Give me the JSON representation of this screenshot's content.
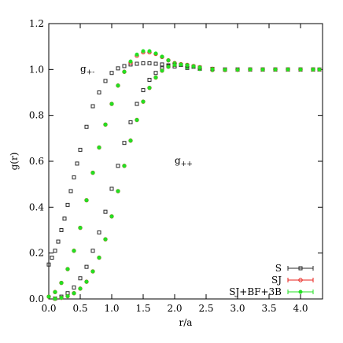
{
  "chart_data": {
    "type": "scatter",
    "xlabel": "r/a",
    "ylabel": "g(r)",
    "xlim": [
      0,
      4.35
    ],
    "ylim": [
      0,
      1.2
    ],
    "x_ticks": [
      0,
      0.5,
      1,
      1.5,
      2,
      2.5,
      3,
      3.5,
      4
    ],
    "x_tick_labels": [
      "0.0",
      "0.5",
      "1.0",
      "1.5",
      "2.0",
      "2.5",
      "3.0",
      "3.5",
      "4.0"
    ],
    "y_ticks": [
      0,
      0.2,
      0.4,
      0.6,
      0.8,
      1.0,
      1.2
    ],
    "y_tick_labels": [
      "0.0",
      "0.2",
      "0.4",
      "0.6",
      "0.8",
      "1.0",
      "1.2"
    ],
    "grid": false,
    "legend_position": "bottom-right",
    "annotations": [
      {
        "base": "g",
        "sub": "+-",
        "x": 0.5,
        "y": 0.99
      },
      {
        "base": "g",
        "sub": "++",
        "x": 2.0,
        "y": 0.59
      }
    ],
    "series": [
      {
        "name": "S",
        "group": "g+-",
        "marker": "square",
        "color": "#2a2a2a",
        "x": [
          0,
          0.05,
          0.1,
          0.15,
          0.2,
          0.25,
          0.3,
          0.35,
          0.4,
          0.45,
          0.5,
          0.6,
          0.7,
          0.8,
          0.9,
          1.0,
          1.1,
          1.2,
          1.3,
          1.4,
          1.5,
          1.6,
          1.7,
          1.8,
          1.9,
          2.0,
          2.2,
          2.4,
          2.6,
          2.8,
          3.0,
          3.2,
          3.4,
          3.6,
          3.8,
          4.0,
          4.2,
          4.3
        ],
        "y": [
          0.15,
          0.18,
          0.21,
          0.25,
          0.3,
          0.35,
          0.41,
          0.47,
          0.53,
          0.59,
          0.65,
          0.75,
          0.84,
          0.9,
          0.95,
          0.985,
          1.005,
          1.015,
          1.022,
          1.025,
          1.027,
          1.027,
          1.025,
          1.022,
          1.018,
          1.013,
          1.007,
          1.003,
          1.001,
          1.0,
          1.0,
          1.0,
          1.0,
          1.0,
          1.0,
          1.0,
          1.0,
          1.0
        ]
      },
      {
        "name": "SJ",
        "group": "g+-",
        "marker": "circle",
        "color": "#e8221b",
        "x": [
          0,
          0.1,
          0.2,
          0.3,
          0.4,
          0.5,
          0.6,
          0.7,
          0.8,
          0.9,
          1.0,
          1.1,
          1.2,
          1.3,
          1.4,
          1.5,
          1.6,
          1.7,
          1.8,
          1.9,
          2.0,
          2.2,
          2.4,
          2.6,
          2.8,
          3.0,
          3.2,
          3.4,
          3.6,
          3.8,
          4.0,
          4.2,
          4.3
        ],
        "y": [
          0.01,
          0.03,
          0.07,
          0.13,
          0.21,
          0.31,
          0.43,
          0.55,
          0.66,
          0.76,
          0.85,
          0.93,
          0.99,
          1.03,
          1.06,
          1.075,
          1.075,
          1.068,
          1.055,
          1.04,
          1.028,
          1.012,
          1.003,
          0.998,
          0.998,
          0.999,
          1.0,
          1.0,
          1.0,
          1.0,
          1.0,
          1.0,
          1.0
        ]
      },
      {
        "name": "SJ+BF+3B",
        "group": "g+-",
        "marker": "dot",
        "color": "#22e022",
        "x": [
          0,
          0.1,
          0.2,
          0.3,
          0.4,
          0.5,
          0.6,
          0.7,
          0.8,
          0.9,
          1.0,
          1.1,
          1.2,
          1.3,
          1.4,
          1.5,
          1.6,
          1.7,
          1.8,
          1.9,
          2.0,
          2.2,
          2.4,
          2.6,
          2.8,
          3.0,
          3.2,
          3.4,
          3.6,
          3.8,
          4.0,
          4.2,
          4.3
        ],
        "y": [
          0.01,
          0.03,
          0.07,
          0.13,
          0.21,
          0.31,
          0.43,
          0.55,
          0.66,
          0.76,
          0.85,
          0.93,
          0.99,
          1.035,
          1.065,
          1.08,
          1.08,
          1.07,
          1.056,
          1.04,
          1.027,
          1.01,
          1.002,
          0.998,
          0.998,
          0.999,
          1.0,
          1.0,
          1.0,
          1.0,
          1.0,
          1.0,
          1.0
        ]
      },
      {
        "name": "S",
        "group": "g++",
        "marker": "square",
        "color": "#2a2a2a",
        "x": [
          0.1,
          0.2,
          0.3,
          0.4,
          0.5,
          0.6,
          0.7,
          0.8,
          0.9,
          1.0,
          1.1,
          1.2,
          1.3,
          1.4,
          1.5,
          1.6,
          1.7,
          1.8,
          1.9,
          2.0,
          2.1,
          2.2,
          2.3,
          2.4,
          2.6,
          2.8,
          3.0,
          3.2,
          3.4,
          3.6,
          3.8,
          4.0,
          4.2
        ],
        "y": [
          0.002,
          0.01,
          0.025,
          0.05,
          0.09,
          0.14,
          0.21,
          0.29,
          0.38,
          0.48,
          0.58,
          0.68,
          0.77,
          0.85,
          0.91,
          0.955,
          0.985,
          1.005,
          1.015,
          1.02,
          1.02,
          1.017,
          1.012,
          1.008,
          1.003,
          1.0,
          1.0,
          1.0,
          1.0,
          1.0,
          1.0,
          1.0,
          1.0
        ]
      },
      {
        "name": "SJ",
        "group": "g++",
        "marker": "circle",
        "color": "#e8221b",
        "x": [
          0.1,
          0.2,
          0.3,
          0.4,
          0.5,
          0.6,
          0.7,
          0.8,
          0.9,
          1.0,
          1.1,
          1.2,
          1.3,
          1.4,
          1.5,
          1.6,
          1.7,
          1.8,
          1.9,
          2.0,
          2.1,
          2.2,
          2.3,
          2.4,
          2.6,
          2.8,
          3.0,
          3.2,
          3.4,
          3.6,
          3.8,
          4.0,
          4.2
        ],
        "y": [
          0.001,
          0.005,
          0.012,
          0.025,
          0.045,
          0.075,
          0.12,
          0.18,
          0.26,
          0.36,
          0.47,
          0.58,
          0.69,
          0.78,
          0.86,
          0.92,
          0.965,
          0.995,
          1.012,
          1.02,
          1.023,
          1.02,
          1.015,
          1.01,
          1.003,
          0.999,
          0.999,
          1.0,
          1.0,
          1.0,
          1.0,
          1.0,
          1.0
        ]
      },
      {
        "name": "SJ+BF+3B",
        "group": "g++",
        "marker": "dot",
        "color": "#22e022",
        "x": [
          0.1,
          0.2,
          0.3,
          0.4,
          0.5,
          0.6,
          0.7,
          0.8,
          0.9,
          1.0,
          1.1,
          1.2,
          1.3,
          1.4,
          1.5,
          1.6,
          1.7,
          1.8,
          1.9,
          2.0,
          2.1,
          2.2,
          2.3,
          2.4,
          2.6,
          2.8,
          3.0,
          3.2,
          3.4,
          3.6,
          3.8,
          4.0,
          4.2
        ],
        "y": [
          0.001,
          0.005,
          0.012,
          0.025,
          0.045,
          0.075,
          0.12,
          0.18,
          0.26,
          0.36,
          0.47,
          0.58,
          0.69,
          0.78,
          0.86,
          0.92,
          0.965,
          0.995,
          1.012,
          1.02,
          1.022,
          1.019,
          1.014,
          1.009,
          1.002,
          0.999,
          0.999,
          1.0,
          1.0,
          1.0,
          1.0,
          1.0,
          1.0
        ]
      }
    ],
    "legend": [
      {
        "label": "S",
        "marker": "square",
        "color": "#2a2a2a"
      },
      {
        "label": "SJ",
        "marker": "circle",
        "color": "#e8221b"
      },
      {
        "label": "SJ+BF+3B",
        "marker": "dot",
        "color": "#22e022"
      }
    ]
  }
}
